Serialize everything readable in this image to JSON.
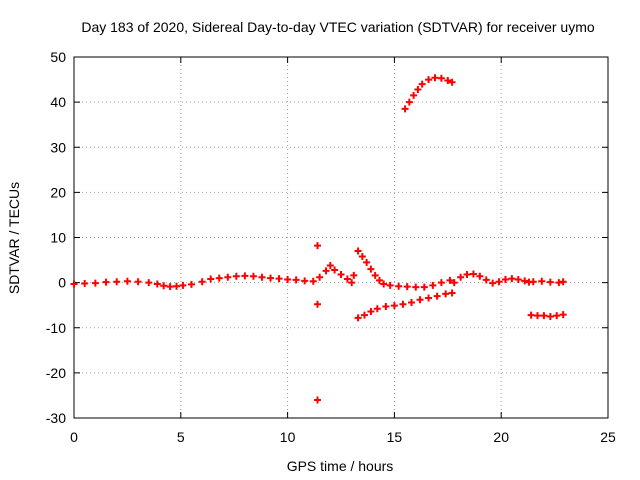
{
  "chart_data": {
    "type": "scatter",
    "title": "Day 183 of 2020, Sidereal Day-to-day VTEC variation (SDTVAR) for receiver uymo",
    "xlabel": "GPS time / hours",
    "ylabel": "SDTVAR / TECUs",
    "xlim": [
      0,
      25
    ],
    "ylim": [
      -30,
      50
    ],
    "xticks": [
      0,
      5,
      10,
      15,
      20,
      25
    ],
    "yticks": [
      -30,
      -20,
      -10,
      0,
      10,
      20,
      30,
      40,
      50
    ],
    "grid": true,
    "marker": "+",
    "color": "#ff0000",
    "series": [
      {
        "name": "SDTVAR",
        "points": [
          [
            0.0,
            -0.3
          ],
          [
            0.5,
            -0.2
          ],
          [
            1.0,
            -0.1
          ],
          [
            1.5,
            0.1
          ],
          [
            2.0,
            0.2
          ],
          [
            2.5,
            0.3
          ],
          [
            3.0,
            0.2
          ],
          [
            3.5,
            0.0
          ],
          [
            3.9,
            -0.3
          ],
          [
            4.2,
            -0.7
          ],
          [
            4.5,
            -0.9
          ],
          [
            4.8,
            -0.8
          ],
          [
            5.1,
            -0.6
          ],
          [
            5.5,
            -0.4
          ],
          [
            6.0,
            0.2
          ],
          [
            6.4,
            0.8
          ],
          [
            6.8,
            1.0
          ],
          [
            7.2,
            1.2
          ],
          [
            7.6,
            1.4
          ],
          [
            8.0,
            1.5
          ],
          [
            8.4,
            1.4
          ],
          [
            8.8,
            1.2
          ],
          [
            9.2,
            1.0
          ],
          [
            9.6,
            0.9
          ],
          [
            10.0,
            0.7
          ],
          [
            10.4,
            0.6
          ],
          [
            10.8,
            0.4
          ],
          [
            11.2,
            0.3
          ],
          [
            11.4,
            8.2
          ],
          [
            11.4,
            -4.8
          ],
          [
            11.4,
            -26.0
          ],
          [
            11.5,
            1.2
          ],
          [
            11.8,
            2.6
          ],
          [
            12.0,
            3.8
          ],
          [
            12.2,
            2.8
          ],
          [
            12.5,
            1.8
          ],
          [
            12.8,
            0.8
          ],
          [
            13.0,
            0.0
          ],
          [
            13.1,
            1.6
          ],
          [
            13.3,
            7.0
          ],
          [
            13.5,
            5.8
          ],
          [
            13.7,
            4.5
          ],
          [
            13.9,
            3.0
          ],
          [
            14.1,
            1.6
          ],
          [
            14.3,
            0.5
          ],
          [
            14.5,
            -0.3
          ],
          [
            14.8,
            -0.6
          ],
          [
            15.2,
            -0.8
          ],
          [
            15.6,
            -0.9
          ],
          [
            16.0,
            -1.0
          ],
          [
            16.4,
            -1.0
          ],
          [
            16.8,
            -0.6
          ],
          [
            17.2,
            0.0
          ],
          [
            17.6,
            0.5
          ],
          [
            13.3,
            -7.8
          ],
          [
            13.6,
            -7.2
          ],
          [
            13.9,
            -6.4
          ],
          [
            14.2,
            -5.8
          ],
          [
            14.6,
            -5.3
          ],
          [
            15.0,
            -5.1
          ],
          [
            15.4,
            -4.8
          ],
          [
            15.8,
            -4.4
          ],
          [
            16.2,
            -3.8
          ],
          [
            16.6,
            -3.4
          ],
          [
            17.0,
            -3.0
          ],
          [
            17.4,
            -2.5
          ],
          [
            17.7,
            -2.3
          ],
          [
            15.5,
            38.5
          ],
          [
            15.7,
            40.0
          ],
          [
            15.9,
            41.5
          ],
          [
            16.1,
            42.8
          ],
          [
            16.3,
            44.0
          ],
          [
            16.6,
            45.0
          ],
          [
            16.9,
            45.4
          ],
          [
            17.2,
            45.3
          ],
          [
            17.5,
            44.8
          ],
          [
            17.7,
            44.4
          ],
          [
            17.8,
            0.0
          ],
          [
            18.1,
            1.2
          ],
          [
            18.4,
            1.8
          ],
          [
            18.7,
            1.9
          ],
          [
            19.0,
            1.4
          ],
          [
            19.3,
            0.6
          ],
          [
            19.6,
            -0.1
          ],
          [
            19.9,
            0.2
          ],
          [
            20.2,
            0.7
          ],
          [
            20.5,
            0.9
          ],
          [
            20.8,
            0.7
          ],
          [
            21.1,
            0.4
          ],
          [
            21.3,
            0.1
          ],
          [
            21.4,
            -7.2
          ],
          [
            21.7,
            -7.3
          ],
          [
            22.0,
            -7.3
          ],
          [
            22.3,
            -7.5
          ],
          [
            22.6,
            -7.3
          ],
          [
            22.9,
            -7.1
          ],
          [
            21.5,
            0.2
          ],
          [
            21.9,
            0.3
          ],
          [
            22.3,
            0.1
          ],
          [
            22.7,
            0.0
          ],
          [
            22.9,
            0.2
          ]
        ]
      }
    ]
  }
}
